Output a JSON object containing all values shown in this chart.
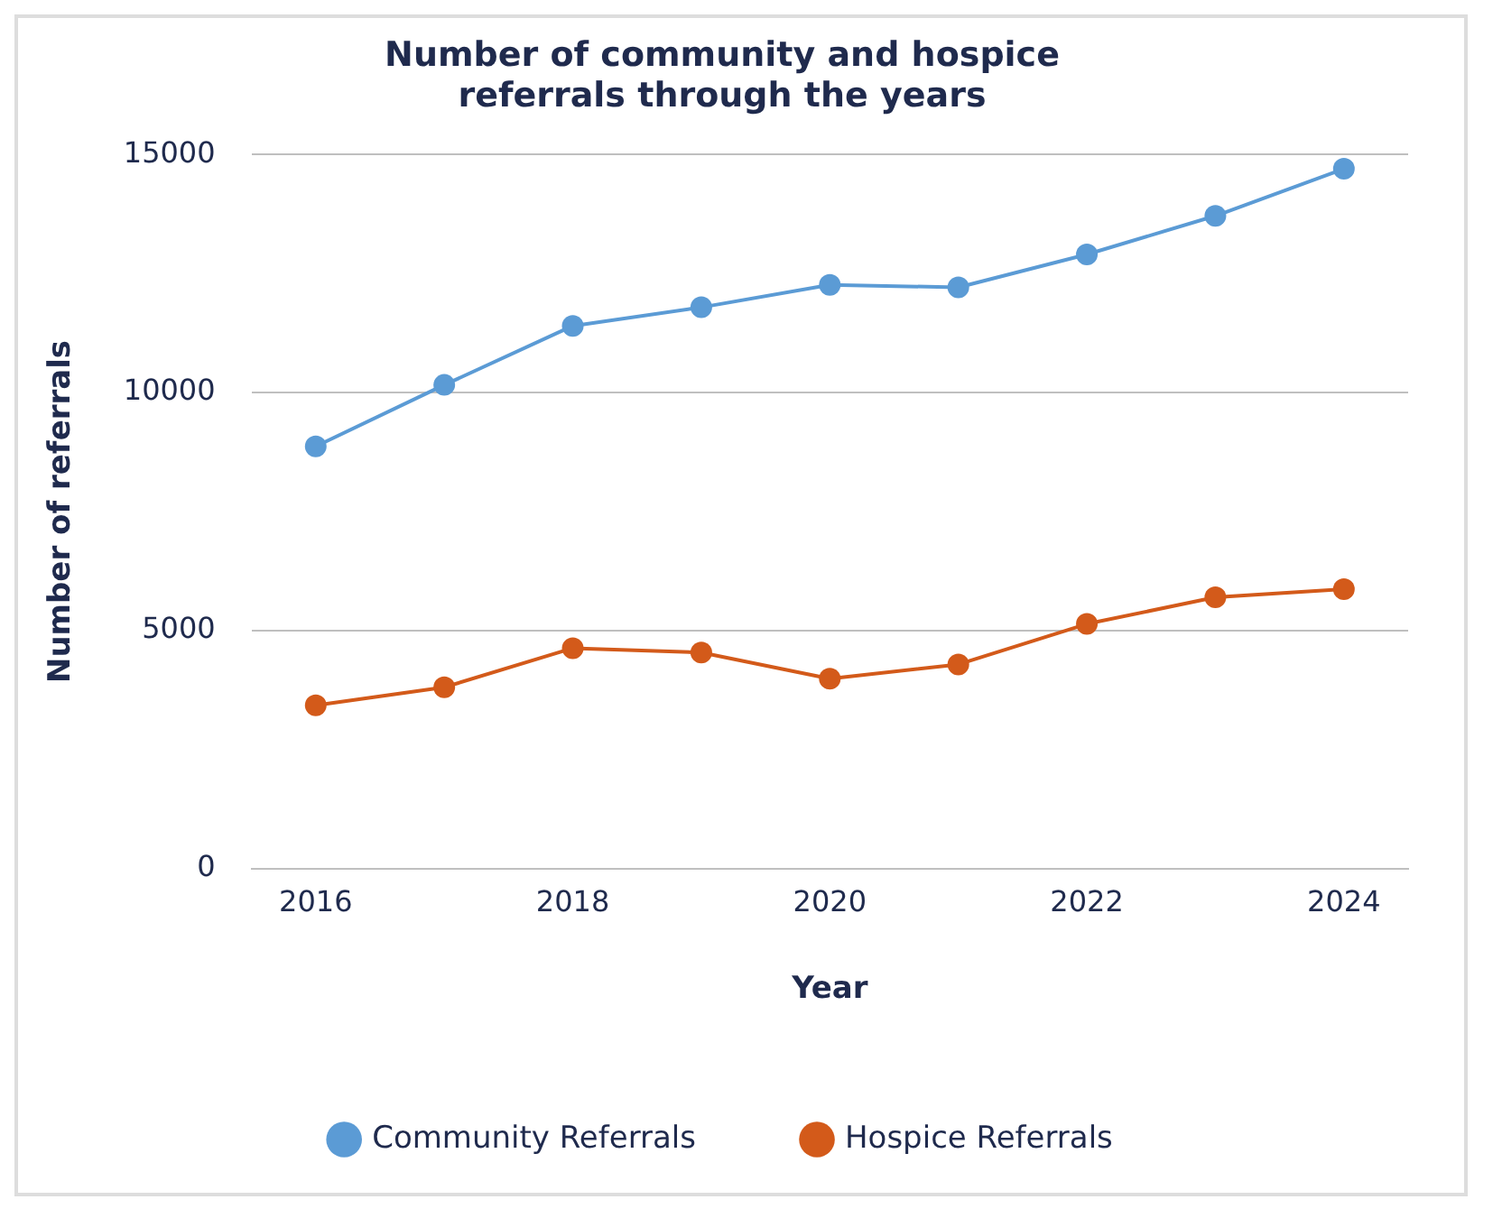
{
  "chart_data": {
    "type": "line",
    "title": "Number of community and hospice referrals through the years",
    "xlabel": "Year",
    "ylabel": "Number of referrals",
    "x": [
      2016,
      2017,
      2018,
      2019,
      2020,
      2021,
      2022,
      2023,
      2024
    ],
    "series": [
      {
        "name": "Community Referrals",
        "color": "#5b9bd5",
        "values": [
          8870,
          10160,
          11400,
          11790,
          12260,
          12210,
          12900,
          13710,
          14700
        ]
      },
      {
        "name": "Hospice Referrals",
        "color": "#d35a1a",
        "values": [
          3430,
          3810,
          4630,
          4540,
          3990,
          4290,
          5140,
          5700,
          5870
        ]
      }
    ],
    "xlim": [
      2015.5,
      2024.5
    ],
    "xticks": [
      2016,
      2018,
      2020,
      2022,
      2024
    ],
    "ylim": [
      0,
      15000
    ],
    "yticks": [
      0,
      5000,
      10000,
      15000
    ],
    "grid": "y",
    "legend": "bottom",
    "marker": "circle",
    "line_style": "solid"
  }
}
